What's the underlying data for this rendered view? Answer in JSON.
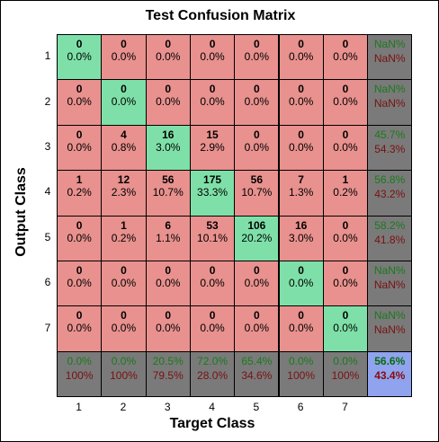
{
  "chart_data": {
    "type": "heatmap",
    "title": "Test Confusion Matrix",
    "xlabel": "Target Class",
    "ylabel": "Output Class",
    "x_ticks": [
      "1",
      "2",
      "3",
      "4",
      "5",
      "6",
      "7"
    ],
    "y_ticks": [
      "1",
      "2",
      "3",
      "4",
      "5",
      "6",
      "7"
    ],
    "counts": [
      [
        0,
        0,
        0,
        0,
        0,
        0,
        0
      ],
      [
        0,
        0,
        0,
        0,
        0,
        0,
        0
      ],
      [
        0,
        4,
        16,
        15,
        0,
        0,
        0
      ],
      [
        1,
        12,
        56,
        175,
        56,
        7,
        1
      ],
      [
        0,
        1,
        6,
        53,
        106,
        16,
        0
      ],
      [
        0,
        0,
        0,
        0,
        0,
        0,
        0
      ],
      [
        0,
        0,
        0,
        0,
        0,
        0,
        0
      ]
    ],
    "percents": [
      [
        "0.0%",
        "0.0%",
        "0.0%",
        "0.0%",
        "0.0%",
        "0.0%",
        "0.0%"
      ],
      [
        "0.0%",
        "0.0%",
        "0.0%",
        "0.0%",
        "0.0%",
        "0.0%",
        "0.0%"
      ],
      [
        "0.0%",
        "0.8%",
        "3.0%",
        "2.9%",
        "0.0%",
        "0.0%",
        "0.0%"
      ],
      [
        "0.2%",
        "2.3%",
        "10.7%",
        "33.3%",
        "10.7%",
        "1.3%",
        "0.2%"
      ],
      [
        "0.0%",
        "0.2%",
        "1.1%",
        "10.1%",
        "20.2%",
        "3.0%",
        "0.0%"
      ],
      [
        "0.0%",
        "0.0%",
        "0.0%",
        "0.0%",
        "0.0%",
        "0.0%",
        "0.0%"
      ],
      [
        "0.0%",
        "0.0%",
        "0.0%",
        "0.0%",
        "0.0%",
        "0.0%",
        "0.0%"
      ]
    ],
    "row_summary": [
      [
        "NaN%",
        "NaN%"
      ],
      [
        "NaN%",
        "NaN%"
      ],
      [
        "45.7%",
        "54.3%"
      ],
      [
        "56.8%",
        "43.2%"
      ],
      [
        "58.2%",
        "41.8%"
      ],
      [
        "NaN%",
        "NaN%"
      ],
      [
        "NaN%",
        "NaN%"
      ]
    ],
    "col_summary": [
      [
        "0.0%",
        "100%"
      ],
      [
        "0.0%",
        "100%"
      ],
      [
        "20.5%",
        "79.5%"
      ],
      [
        "72.0%",
        "28.0%"
      ],
      [
        "65.4%",
        "34.6%"
      ],
      [
        "0.0%",
        "100%"
      ],
      [
        "0.0%",
        "100%"
      ]
    ],
    "overall": [
      "56.6%",
      "43.4%"
    ]
  },
  "colors": {
    "diagonal": "#7ee0a8",
    "offdiagonal": "#e8918e",
    "summary": "#7a7a7a",
    "overall": "#8fa3ee",
    "correct_text": "#1a7a1a",
    "incorrect_text": "#7a1010",
    "overall_correct_text": "#0a6a0a",
    "overall_incorrect_text": "#8a0a0a"
  }
}
